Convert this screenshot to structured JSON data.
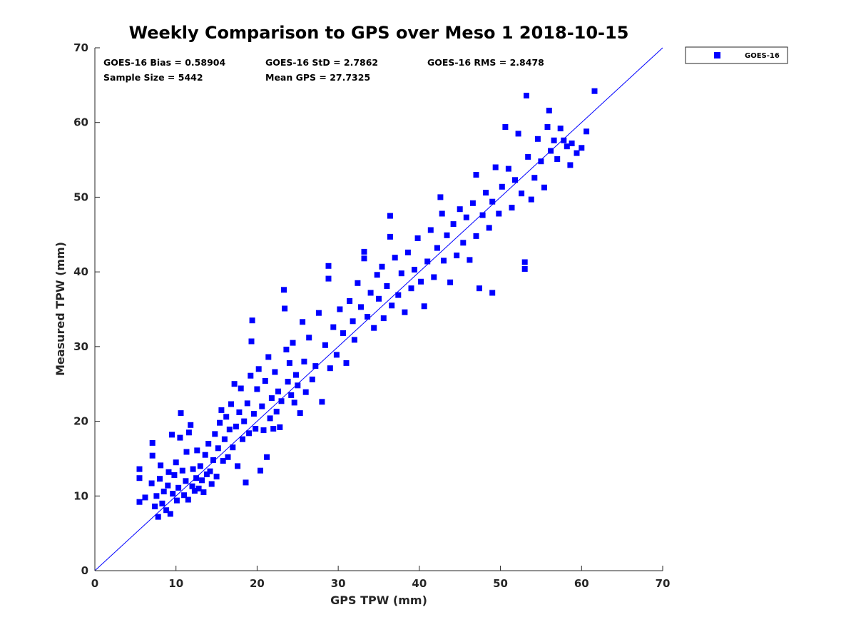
{
  "chart_data": {
    "type": "scatter",
    "title": "Weekly Comparison to GPS over Meso 1 2018-10-15",
    "xlabel": "GPS TPW (mm)",
    "ylabel": "Measured TPW (mm)",
    "xlim": [
      0,
      70
    ],
    "ylim": [
      0,
      70
    ],
    "xticks": [
      "0",
      "10",
      "20",
      "30",
      "40",
      "50",
      "60",
      "70"
    ],
    "yticks": [
      "0",
      "10",
      "20",
      "30",
      "40",
      "50",
      "60",
      "70"
    ],
    "grid": false,
    "legend_position": "outside top-right",
    "reference_line": {
      "from": [
        0,
        0
      ],
      "to": [
        70,
        70
      ],
      "color": "#0000ff"
    },
    "stats": [
      "GOES-16 Bias = 0.58904",
      "GOES-16 StD = 2.7862",
      "GOES-16 RMS = 2.8478",
      "Sample Size = 5442",
      "Mean GPS = 27.7325"
    ],
    "series": [
      {
        "name": "GOES-16",
        "color": "#0000ff",
        "marker": "square",
        "points": [
          [
            5.5,
            9.2
          ],
          [
            5.5,
            12.4
          ],
          [
            5.5,
            13.6
          ],
          [
            6.2,
            9.8
          ],
          [
            7.0,
            11.7
          ],
          [
            7.1,
            15.4
          ],
          [
            7.1,
            17.1
          ],
          [
            7.4,
            8.6
          ],
          [
            7.6,
            10.0
          ],
          [
            7.8,
            7.2
          ],
          [
            8.0,
            12.3
          ],
          [
            8.1,
            14.1
          ],
          [
            8.3,
            9.0
          ],
          [
            8.5,
            10.6
          ],
          [
            8.8,
            8.1
          ],
          [
            9.0,
            11.4
          ],
          [
            9.1,
            13.2
          ],
          [
            9.3,
            7.6
          ],
          [
            9.5,
            18.2
          ],
          [
            9.6,
            10.3
          ],
          [
            9.8,
            12.8
          ],
          [
            10.0,
            14.5
          ],
          [
            10.1,
            9.4
          ],
          [
            10.3,
            11.1
          ],
          [
            10.5,
            17.8
          ],
          [
            10.6,
            21.1
          ],
          [
            10.8,
            13.4
          ],
          [
            11.0,
            10.1
          ],
          [
            11.2,
            12.0
          ],
          [
            11.3,
            15.9
          ],
          [
            11.5,
            9.5
          ],
          [
            11.6,
            18.5
          ],
          [
            11.8,
            19.5
          ],
          [
            12.0,
            11.3
          ],
          [
            12.1,
            13.6
          ],
          [
            12.3,
            10.7
          ],
          [
            12.5,
            12.4
          ],
          [
            12.6,
            16.1
          ],
          [
            12.8,
            11.0
          ],
          [
            13.0,
            14.0
          ],
          [
            13.2,
            12.1
          ],
          [
            13.4,
            10.5
          ],
          [
            13.6,
            15.5
          ],
          [
            13.8,
            12.9
          ],
          [
            14.0,
            17.0
          ],
          [
            14.2,
            13.3
          ],
          [
            14.4,
            11.6
          ],
          [
            14.6,
            14.8
          ],
          [
            14.8,
            18.3
          ],
          [
            15.0,
            12.6
          ],
          [
            15.2,
            16.4
          ],
          [
            15.4,
            19.8
          ],
          [
            15.6,
            21.5
          ],
          [
            15.8,
            14.7
          ],
          [
            16.0,
            17.6
          ],
          [
            16.2,
            20.6
          ],
          [
            16.4,
            15.2
          ],
          [
            16.6,
            18.9
          ],
          [
            16.8,
            22.3
          ],
          [
            17.0,
            16.5
          ],
          [
            17.2,
            25.0
          ],
          [
            17.4,
            19.3
          ],
          [
            17.6,
            14.0
          ],
          [
            17.8,
            21.2
          ],
          [
            18.0,
            24.4
          ],
          [
            18.2,
            17.6
          ],
          [
            18.4,
            20.0
          ],
          [
            18.6,
            11.8
          ],
          [
            18.8,
            22.4
          ],
          [
            19.0,
            18.4
          ],
          [
            19.2,
            26.1
          ],
          [
            19.3,
            30.7
          ],
          [
            19.4,
            33.5
          ],
          [
            19.6,
            21.0
          ],
          [
            19.8,
            19.0
          ],
          [
            20.0,
            24.3
          ],
          [
            20.2,
            27.0
          ],
          [
            20.4,
            13.4
          ],
          [
            20.6,
            22.0
          ],
          [
            20.8,
            18.8
          ],
          [
            21.0,
            25.4
          ],
          [
            21.2,
            15.2
          ],
          [
            21.4,
            28.6
          ],
          [
            21.6,
            20.4
          ],
          [
            21.8,
            23.1
          ],
          [
            22.0,
            19.0
          ],
          [
            22.2,
            26.6
          ],
          [
            22.4,
            21.3
          ],
          [
            22.6,
            24.0
          ],
          [
            22.8,
            19.2
          ],
          [
            23.0,
            22.7
          ],
          [
            23.3,
            37.6
          ],
          [
            23.4,
            35.1
          ],
          [
            23.6,
            29.6
          ],
          [
            23.8,
            25.3
          ],
          [
            24.0,
            27.8
          ],
          [
            24.2,
            23.5
          ],
          [
            24.4,
            30.5
          ],
          [
            24.6,
            22.5
          ],
          [
            24.8,
            26.2
          ],
          [
            25.0,
            24.8
          ],
          [
            25.3,
            21.1
          ],
          [
            25.6,
            33.3
          ],
          [
            25.8,
            28.0
          ],
          [
            26.0,
            23.9
          ],
          [
            26.4,
            31.2
          ],
          [
            26.8,
            25.6
          ],
          [
            27.2,
            27.4
          ],
          [
            27.6,
            34.5
          ],
          [
            28.0,
            22.6
          ],
          [
            28.4,
            30.2
          ],
          [
            28.8,
            40.8
          ],
          [
            28.8,
            39.1
          ],
          [
            29.0,
            27.1
          ],
          [
            29.4,
            32.6
          ],
          [
            29.8,
            28.9
          ],
          [
            30.2,
            35.0
          ],
          [
            30.6,
            31.8
          ],
          [
            31.0,
            27.8
          ],
          [
            31.4,
            36.1
          ],
          [
            31.8,
            33.4
          ],
          [
            32.0,
            30.9
          ],
          [
            32.4,
            38.5
          ],
          [
            32.8,
            35.3
          ],
          [
            33.2,
            42.7
          ],
          [
            33.2,
            41.8
          ],
          [
            33.6,
            34.0
          ],
          [
            34.0,
            37.2
          ],
          [
            34.4,
            32.5
          ],
          [
            34.8,
            39.6
          ],
          [
            35.0,
            36.4
          ],
          [
            35.4,
            40.7
          ],
          [
            35.6,
            33.8
          ],
          [
            36.0,
            38.1
          ],
          [
            36.4,
            47.5
          ],
          [
            36.4,
            44.7
          ],
          [
            36.6,
            35.5
          ],
          [
            37.0,
            41.9
          ],
          [
            37.4,
            36.9
          ],
          [
            37.8,
            39.8
          ],
          [
            38.2,
            34.6
          ],
          [
            38.6,
            42.6
          ],
          [
            39.0,
            37.8
          ],
          [
            39.4,
            40.3
          ],
          [
            39.8,
            44.5
          ],
          [
            40.2,
            38.7
          ],
          [
            40.6,
            35.4
          ],
          [
            41.0,
            41.4
          ],
          [
            41.4,
            45.6
          ],
          [
            41.8,
            39.3
          ],
          [
            42.2,
            43.2
          ],
          [
            42.6,
            50.0
          ],
          [
            42.8,
            47.8
          ],
          [
            43.0,
            41.5
          ],
          [
            43.4,
            44.9
          ],
          [
            43.8,
            38.6
          ],
          [
            44.2,
            46.4
          ],
          [
            44.6,
            42.2
          ],
          [
            45.0,
            48.4
          ],
          [
            45.4,
            43.9
          ],
          [
            45.8,
            47.3
          ],
          [
            46.2,
            41.6
          ],
          [
            46.6,
            49.2
          ],
          [
            47.0,
            44.8
          ],
          [
            47.0,
            53.0
          ],
          [
            47.4,
            37.8
          ],
          [
            47.8,
            47.6
          ],
          [
            48.2,
            50.6
          ],
          [
            48.6,
            45.9
          ],
          [
            49.0,
            37.2
          ],
          [
            49.0,
            49.4
          ],
          [
            49.4,
            54.0
          ],
          [
            49.8,
            47.8
          ],
          [
            50.2,
            51.4
          ],
          [
            50.6,
            59.4
          ],
          [
            51.0,
            53.8
          ],
          [
            51.4,
            48.6
          ],
          [
            51.8,
            52.3
          ],
          [
            52.2,
            58.5
          ],
          [
            52.6,
            50.5
          ],
          [
            53.0,
            41.3
          ],
          [
            53.0,
            40.4
          ],
          [
            53.2,
            63.6
          ],
          [
            53.4,
            55.4
          ],
          [
            53.8,
            49.7
          ],
          [
            54.2,
            52.6
          ],
          [
            54.6,
            57.8
          ],
          [
            55.0,
            54.8
          ],
          [
            55.4,
            51.3
          ],
          [
            55.8,
            59.4
          ],
          [
            56.0,
            61.6
          ],
          [
            56.2,
            56.2
          ],
          [
            56.6,
            57.6
          ],
          [
            57.0,
            55.1
          ],
          [
            57.4,
            59.2
          ],
          [
            57.8,
            57.6
          ],
          [
            58.2,
            56.8
          ],
          [
            58.6,
            54.3
          ],
          [
            58.8,
            57.2
          ],
          [
            59.4,
            55.9
          ],
          [
            60.0,
            56.6
          ],
          [
            60.6,
            58.8
          ],
          [
            61.6,
            64.2
          ]
        ]
      }
    ]
  }
}
